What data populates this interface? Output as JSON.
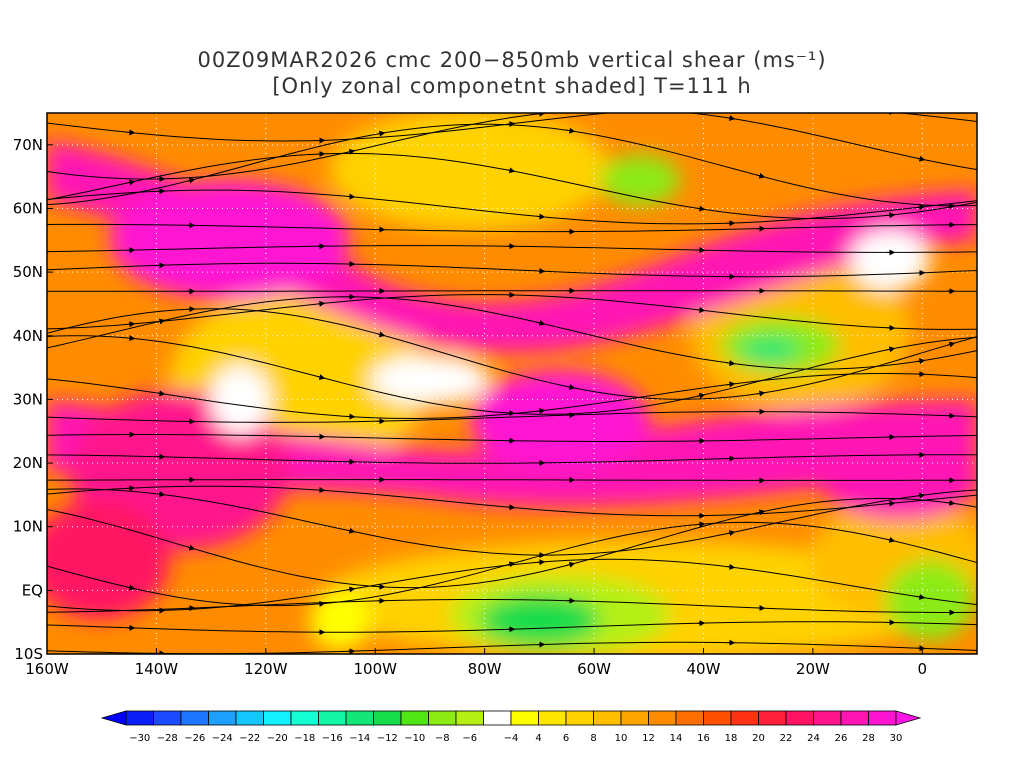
{
  "title": {
    "line1": "00Z09MAR2026 cmc 200−850mb vertical shear (ms⁻¹)",
    "line2": "[Only zonal componetnt shaded] T=111 h"
  },
  "map": {
    "lon_range": [
      -160,
      10
    ],
    "lat_range": [
      -10,
      75
    ],
    "lat_ticks": [
      {
        "lat": 70,
        "label": "70N"
      },
      {
        "lat": 60,
        "label": "60N"
      },
      {
        "lat": 50,
        "label": "50N"
      },
      {
        "lat": 40,
        "label": "40N"
      },
      {
        "lat": 30,
        "label": "30N"
      },
      {
        "lat": 20,
        "label": "20N"
      },
      {
        "lat": 10,
        "label": "10N"
      },
      {
        "lat": 0,
        "label": "EQ"
      },
      {
        "lat": -10,
        "label": "10S"
      }
    ],
    "lon_ticks": [
      {
        "lon": -160,
        "label": "160W"
      },
      {
        "lon": -140,
        "label": "140W"
      },
      {
        "lon": -120,
        "label": "120W"
      },
      {
        "lon": -100,
        "label": "100W"
      },
      {
        "lon": -80,
        "label": "80W"
      },
      {
        "lon": -60,
        "label": "60W"
      },
      {
        "lon": -40,
        "label": "40W"
      },
      {
        "lon": -20,
        "label": "20W"
      },
      {
        "lon": 0,
        "label": "0"
      }
    ]
  },
  "colorbar": {
    "labels": [
      "−30",
      "−28",
      "−26",
      "−24",
      "−22",
      "−20",
      "−18",
      "−16",
      "−14",
      "−12",
      "−10",
      "−8",
      "−6",
      "−4",
      "4",
      "6",
      "8",
      "10",
      "12",
      "14",
      "16",
      "18",
      "20",
      "22",
      "24",
      "26",
      "28",
      "30"
    ],
    "colors": [
      "#0a1ef5",
      "#1e4bff",
      "#1e78ff",
      "#1ea0ff",
      "#14c8ff",
      "#14f0ff",
      "#14ffd2",
      "#14f5a5",
      "#14e678",
      "#14dc4b",
      "#50e614",
      "#8ceb14",
      "#b4f014",
      "#ffffff",
      "#ffff00",
      "#ffe600",
      "#ffd200",
      "#ffbe00",
      "#ffa500",
      "#ff8c00",
      "#ff6e00",
      "#ff5000",
      "#ff3214",
      "#ff1e3c",
      "#ff1464",
      "#ff148c",
      "#ff14b4",
      "#ff14d2"
    ],
    "under_color": "#0000ff",
    "over_color": "#ff14e6"
  }
}
